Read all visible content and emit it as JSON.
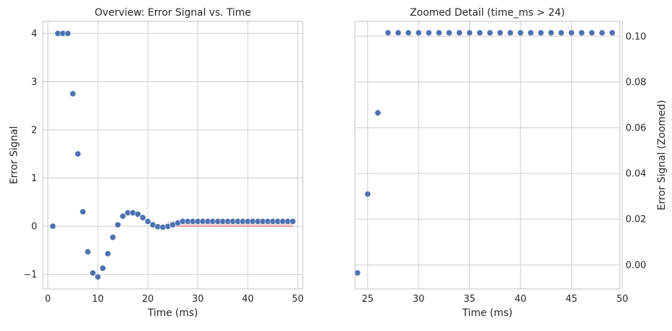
{
  "chart_data": [
    {
      "type": "scatter",
      "title": "Overview: Error Signal vs. Time",
      "xlabel": "Time (ms)",
      "ylabel": "Error Signal",
      "xlim": [
        -1,
        51
      ],
      "ylim": [
        -1.3,
        4.25
      ],
      "xticks": [
        0,
        10,
        20,
        30,
        40,
        50
      ],
      "yticks": [
        -1,
        0,
        1,
        2,
        3,
        4
      ],
      "ytick_labels": [
        "−1",
        "0",
        "1",
        "2",
        "3",
        "4"
      ],
      "grid": true,
      "highlight_band": {
        "x": [
          24,
          49
        ],
        "y": [
          0.0,
          0.1
        ],
        "color": "#f08080"
      },
      "point_color": "#4c72b0",
      "x": [
        1,
        2,
        3,
        4,
        5,
        6,
        7,
        8,
        9,
        10,
        11,
        12,
        13,
        14,
        15,
        16,
        17,
        18,
        19,
        20,
        21,
        22,
        23,
        24,
        25,
        26,
        27,
        28,
        29,
        30,
        31,
        32,
        33,
        34,
        35,
        36,
        37,
        38,
        39,
        40,
        41,
        42,
        43,
        44,
        45,
        46,
        47,
        48,
        49
      ],
      "y": [
        0.0,
        4.0,
        4.0,
        4.0,
        2.75,
        1.5,
        0.3,
        -0.53,
        -0.97,
        -1.05,
        -0.87,
        -0.57,
        -0.23,
        0.03,
        0.21,
        0.28,
        0.28,
        0.25,
        0.18,
        0.1,
        0.03,
        -0.01,
        -0.02,
        -0.003,
        0.031,
        0.067,
        0.101,
        0.101,
        0.101,
        0.101,
        0.101,
        0.101,
        0.101,
        0.101,
        0.101,
        0.101,
        0.101,
        0.101,
        0.101,
        0.101,
        0.101,
        0.101,
        0.101,
        0.101,
        0.101,
        0.101,
        0.101,
        0.101,
        0.101
      ]
    },
    {
      "type": "scatter",
      "title": "Zoomed Detail (time_ms > 24)",
      "xlabel": "Time (ms)",
      "ylabel": "Error Signal (Zoomed)",
      "xlim": [
        23.75,
        49.75
      ],
      "ylim": [
        -0.0105,
        0.1065
      ],
      "xticks": [
        25,
        30,
        35,
        40,
        45,
        50
      ],
      "yticks": [
        0.0,
        0.02,
        0.04,
        0.06,
        0.08,
        0.1
      ],
      "ytick_labels": [
        "0.00",
        "0.02",
        "0.04",
        "0.06",
        "0.08",
        "0.10"
      ],
      "grid": true,
      "point_color": "#4c72b0",
      "x": [
        24,
        25,
        26,
        27,
        28,
        29,
        30,
        31,
        32,
        33,
        34,
        35,
        36,
        37,
        38,
        39,
        40,
        41,
        42,
        43,
        44,
        45,
        46,
        47,
        48,
        49
      ],
      "y": [
        -0.0035,
        0.031,
        0.0665,
        0.1015,
        0.1015,
        0.1015,
        0.1015,
        0.1015,
        0.1015,
        0.1015,
        0.1015,
        0.1015,
        0.1015,
        0.1015,
        0.1015,
        0.1015,
        0.1015,
        0.1015,
        0.1015,
        0.1015,
        0.1015,
        0.1015,
        0.1015,
        0.1015,
        0.1015,
        0.1015
      ]
    }
  ]
}
